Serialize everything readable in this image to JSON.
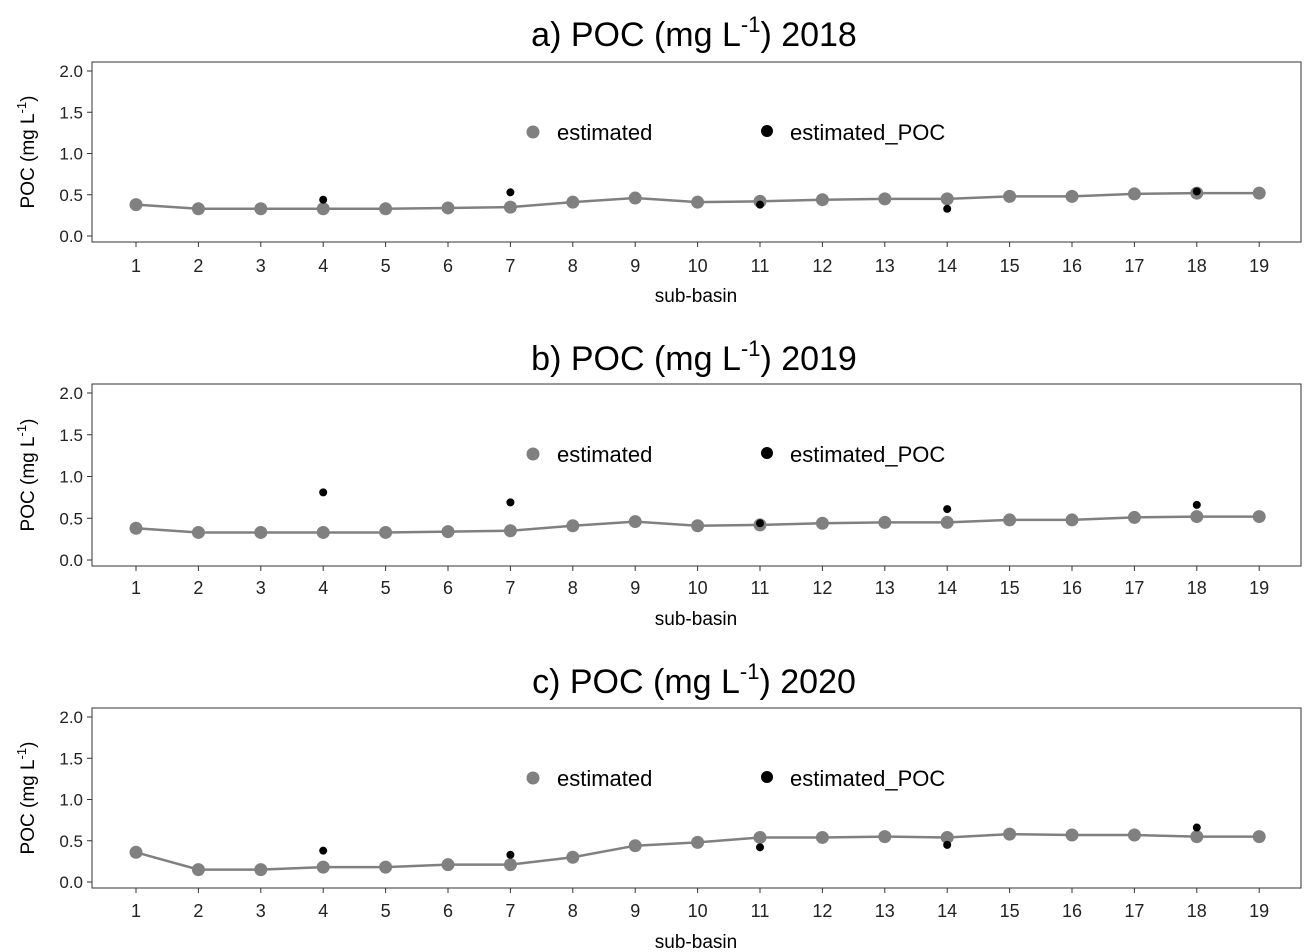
{
  "chart_data": [
    {
      "type": "line",
      "title": "a) POC (mg L",
      "title_sup": "-1",
      "title_suffix": ") 2018",
      "xlabel": "sub-basin",
      "ylabel": "POC (mg L",
      "ylabel_sup": "-1",
      "ylabel_close": ")",
      "x": [
        1,
        2,
        3,
        4,
        5,
        6,
        7,
        8,
        9,
        10,
        11,
        12,
        13,
        14,
        15,
        16,
        17,
        18,
        19
      ],
      "y_ticks": [
        "0.0",
        "0.5",
        "1.0",
        "1.5",
        "2.0"
      ],
      "ylim": [
        0,
        2.0
      ],
      "grid": false,
      "legend_position": "top-center",
      "series": [
        {
          "name": "estimated",
          "kind": "line+points",
          "color": "#808080",
          "values": [
            0.38,
            0.33,
            0.33,
            0.33,
            0.33,
            0.34,
            0.35,
            0.41,
            0.46,
            0.41,
            0.42,
            0.44,
            0.45,
            0.45,
            0.48,
            0.48,
            0.51,
            0.52,
            0.52
          ]
        },
        {
          "name": "estimated_POC",
          "kind": "points",
          "color": "#000000",
          "points": [
            [
              4,
              0.44
            ],
            [
              7,
              0.53
            ],
            [
              11,
              0.38
            ],
            [
              14,
              0.33
            ],
            [
              18,
              0.54
            ]
          ]
        }
      ]
    },
    {
      "type": "line",
      "title": "b) POC (mg L",
      "title_sup": "-1",
      "title_suffix": ") 2019",
      "xlabel": "sub-basin",
      "ylabel": "POC (mg L",
      "ylabel_sup": "-1",
      "ylabel_close": ")",
      "x": [
        1,
        2,
        3,
        4,
        5,
        6,
        7,
        8,
        9,
        10,
        11,
        12,
        13,
        14,
        15,
        16,
        17,
        18,
        19
      ],
      "y_ticks": [
        "0.0",
        "0.5",
        "1.0",
        "1.5",
        "2.0"
      ],
      "ylim": [
        0,
        2.0
      ],
      "grid": false,
      "legend_position": "top-center",
      "series": [
        {
          "name": "estimated",
          "kind": "line+points",
          "color": "#808080",
          "values": [
            0.38,
            0.33,
            0.33,
            0.33,
            0.33,
            0.34,
            0.35,
            0.41,
            0.46,
            0.41,
            0.42,
            0.44,
            0.45,
            0.45,
            0.48,
            0.48,
            0.51,
            0.52,
            0.52
          ]
        },
        {
          "name": "estimated_POC",
          "kind": "points",
          "color": "#000000",
          "points": [
            [
              4,
              0.81
            ],
            [
              7,
              0.69
            ],
            [
              11,
              0.44
            ],
            [
              14,
              0.61
            ],
            [
              18,
              0.66
            ]
          ]
        }
      ]
    },
    {
      "type": "line",
      "title": "c) POC (mg L",
      "title_sup": "-1",
      "title_suffix": ") 2020",
      "xlabel": "sub-basin",
      "ylabel": "POC (mg L",
      "ylabel_sup": "-1",
      "ylabel_close": ")",
      "x": [
        1,
        2,
        3,
        4,
        5,
        6,
        7,
        8,
        9,
        10,
        11,
        12,
        13,
        14,
        15,
        16,
        17,
        18,
        19
      ],
      "y_ticks": [
        "0.0",
        "0.5",
        "1.0",
        "1.5",
        "2.0"
      ],
      "ylim": [
        0,
        2.0
      ],
      "grid": false,
      "legend_position": "top-center",
      "series": [
        {
          "name": "estimated",
          "kind": "line+points",
          "color": "#808080",
          "values": [
            0.36,
            0.15,
            0.15,
            0.18,
            0.18,
            0.21,
            0.21,
            0.3,
            0.44,
            0.48,
            0.54,
            0.54,
            0.55,
            0.54,
            0.58,
            0.57,
            0.57,
            0.55,
            0.55
          ]
        },
        {
          "name": "estimated_POC",
          "kind": "points",
          "color": "#000000",
          "points": [
            [
              4,
              0.38
            ],
            [
              7,
              0.33
            ],
            [
              11,
              0.42
            ],
            [
              14,
              0.45
            ],
            [
              18,
              0.66
            ]
          ]
        }
      ]
    }
  ]
}
